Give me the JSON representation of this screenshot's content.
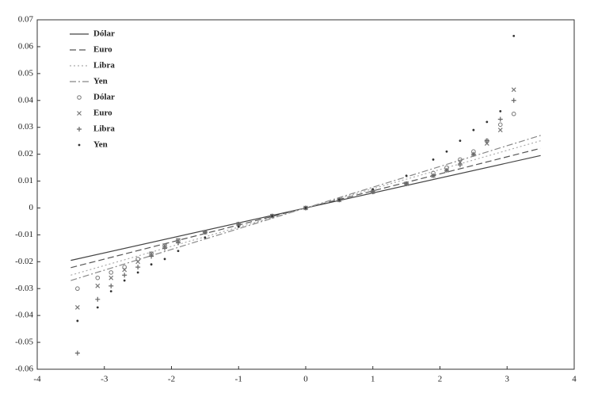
{
  "chart_data": {
    "type": "line",
    "xlim": [
      -4,
      4
    ],
    "xticks": [
      -4,
      -3,
      -2,
      -1,
      0,
      1,
      2,
      3,
      4
    ],
    "ylim": [
      -0.06,
      0.07
    ],
    "yticks": [
      -0.06,
      -0.05,
      -0.04,
      -0.03,
      -0.02,
      -0.01,
      0,
      0.01,
      0.02,
      0.03,
      0.04,
      0.05,
      0.06,
      0.07
    ],
    "legend": "upper left",
    "series": [
      {
        "name": "Dólar",
        "color": "#444444",
        "dash": "solid",
        "x": [
          -3.5,
          3.5
        ],
        "values": [
          -0.0195,
          0.0195
        ]
      },
      {
        "name": "Euro",
        "color": "#555555",
        "dash": "dashed",
        "x": [
          -3.5,
          3.5
        ],
        "values": [
          -0.0222,
          0.0222
        ]
      },
      {
        "name": "Libra",
        "color": "#aaaaaa",
        "dash": "dotted",
        "x": [
          -3.5,
          3.5
        ],
        "values": [
          -0.025,
          0.025
        ]
      },
      {
        "name": "Yen",
        "color": "#888888",
        "dash": "dashdot",
        "x": [
          -3.5,
          3.5
        ],
        "values": [
          -0.027,
          0.027
        ]
      },
      {
        "name": "Dólar",
        "color": "#777777",
        "marker": "circle",
        "x": [
          -3.4,
          -3.1,
          -2.9,
          -2.7,
          -2.5,
          -2.3,
          -2.1,
          -1.9,
          -1.5,
          -1,
          -0.5,
          0,
          0.5,
          1,
          1.5,
          1.9,
          2.1,
          2.3,
          2.5,
          2.7,
          2.9,
          3.1
        ],
        "values": [
          -0.03,
          -0.026,
          -0.024,
          -0.022,
          -0.019,
          -0.017,
          -0.014,
          -0.012,
          -0.009,
          -0.006,
          -0.003,
          0,
          0.003,
          0.006,
          0.009,
          0.013,
          0.015,
          0.018,
          0.021,
          0.025,
          0.031,
          0.035
        ]
      },
      {
        "name": "Euro",
        "color": "#777777",
        "marker": "x",
        "x": [
          -3.4,
          -3.1,
          -2.9,
          -2.7,
          -2.5,
          -2.3,
          -2.1,
          -1.9,
          -1.5,
          -1,
          -0.5,
          0,
          0.5,
          1,
          1.5,
          1.9,
          2.1,
          2.3,
          2.5,
          2.7,
          2.9,
          3.1
        ],
        "values": [
          -0.037,
          -0.029,
          -0.026,
          -0.023,
          -0.02,
          -0.017,
          -0.014,
          -0.012,
          -0.009,
          -0.006,
          -0.003,
          0,
          0.003,
          0.006,
          0.009,
          0.012,
          0.014,
          0.017,
          0.02,
          0.024,
          0.029,
          0.044
        ]
      },
      {
        "name": "Libra",
        "color": "#666666",
        "marker": "plus",
        "x": [
          -3.4,
          -3.1,
          -2.9,
          -2.7,
          -2.5,
          -2.3,
          -2.1,
          -1.9,
          -1.5,
          -1,
          -0.5,
          0,
          0.5,
          1,
          1.5,
          1.9,
          2.1,
          2.3,
          2.5,
          2.7,
          2.9,
          3.1
        ],
        "values": [
          -0.054,
          -0.034,
          -0.029,
          -0.025,
          -0.022,
          -0.018,
          -0.015,
          -0.013,
          -0.009,
          -0.006,
          -0.003,
          0,
          0.003,
          0.006,
          0.009,
          0.012,
          0.014,
          0.016,
          0.02,
          0.025,
          0.033,
          0.04
        ]
      },
      {
        "name": "Yen",
        "color": "#333333",
        "marker": "dot",
        "x": [
          -3.4,
          -3.1,
          -2.9,
          -2.7,
          -2.5,
          -2.3,
          -2.1,
          -1.9,
          -1.5,
          -1,
          -0.5,
          0,
          0.5,
          1,
          1.5,
          1.9,
          2.1,
          2.3,
          2.5,
          2.7,
          2.9,
          3.1
        ],
        "values": [
          -0.042,
          -0.037,
          -0.031,
          -0.027,
          -0.024,
          -0.021,
          -0.019,
          -0.016,
          -0.011,
          -0.007,
          -0.003,
          0,
          0.003,
          0.007,
          0.012,
          0.018,
          0.021,
          0.025,
          0.029,
          0.032,
          0.036,
          0.064
        ]
      }
    ]
  }
}
